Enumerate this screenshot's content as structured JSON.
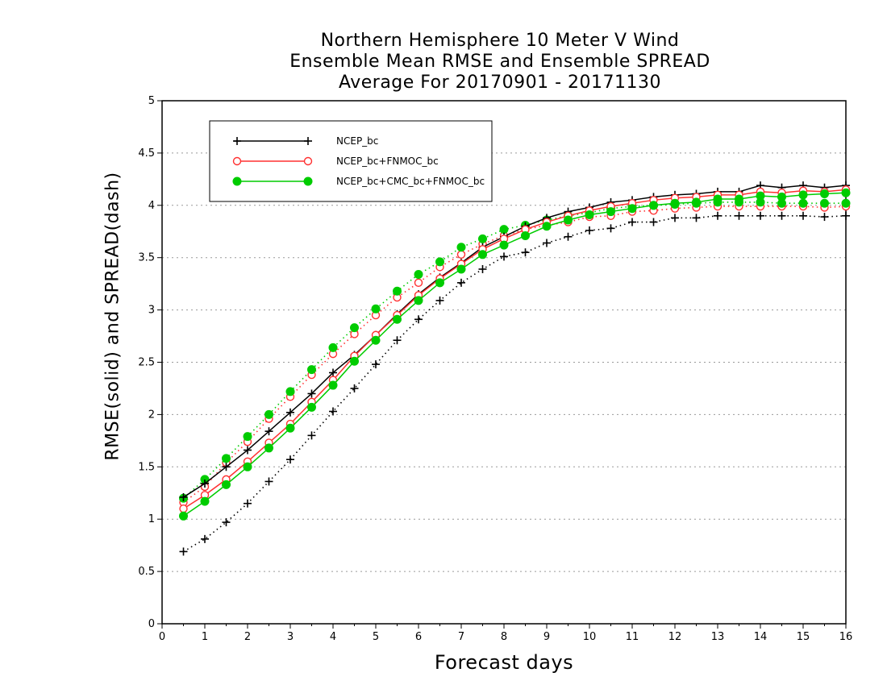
{
  "chart_data": {
    "type": "line",
    "title_lines": [
      "Northern Hemisphere 10 Meter V Wind",
      "Ensemble Mean RMSE and Ensemble SPREAD",
      "Average For 20170901 - 20171130"
    ],
    "xlabel": "Forecast days",
    "ylabel": "RMSE(solid) and SPREAD(dash)",
    "xlim": [
      0,
      16
    ],
    "ylim": [
      0,
      5
    ],
    "xticks": [
      0,
      1,
      2,
      3,
      4,
      5,
      6,
      7,
      8,
      9,
      10,
      11,
      12,
      13,
      14,
      15,
      16
    ],
    "yticks": [
      0,
      0.5,
      1,
      1.5,
      2,
      2.5,
      3,
      3.5,
      4,
      4.5,
      5
    ],
    "ytick_labels": [
      "0",
      "0.5",
      "1",
      "1.5",
      "2",
      "2.5",
      "3",
      "3.5",
      "4",
      "4.5",
      "5"
    ],
    "grid": "dotted horizontal",
    "legend_position": "top-left",
    "x": [
      0.5,
      1,
      1.5,
      2,
      2.5,
      3,
      3.5,
      4,
      4.5,
      5,
      5.5,
      6,
      6.5,
      7,
      7.5,
      8,
      8.5,
      9,
      9.5,
      10,
      10.5,
      11,
      11.5,
      12,
      12.5,
      13,
      13.5,
      14,
      14.5,
      15,
      15.5,
      16
    ],
    "series": [
      {
        "name": "NCEP_bc",
        "color": "#000000",
        "marker": "plus",
        "rmse": [
          1.21,
          1.34,
          1.5,
          1.66,
          1.84,
          2.02,
          2.2,
          2.4,
          2.57,
          2.76,
          2.96,
          3.15,
          3.31,
          3.45,
          3.6,
          3.7,
          3.8,
          3.88,
          3.94,
          3.98,
          4.03,
          4.05,
          4.08,
          4.1,
          4.11,
          4.13,
          4.13,
          4.19,
          4.17,
          4.19,
          4.17,
          4.19
        ],
        "spread": [
          0.69,
          0.81,
          0.97,
          1.15,
          1.36,
          1.57,
          1.8,
          2.03,
          2.25,
          2.48,
          2.71,
          2.91,
          3.09,
          3.26,
          3.39,
          3.51,
          3.55,
          3.64,
          3.7,
          3.76,
          3.78,
          3.84,
          3.84,
          3.88,
          3.88,
          3.9,
          3.9,
          3.9,
          3.9,
          3.9,
          3.89,
          3.9
        ]
      },
      {
        "name": "NCEP_bc+FNMOC_bc",
        "color": "#ff3030",
        "marker": "open-circle",
        "rmse": [
          1.1,
          1.23,
          1.38,
          1.55,
          1.73,
          1.91,
          2.12,
          2.33,
          2.56,
          2.76,
          2.95,
          3.14,
          3.3,
          3.44,
          3.58,
          3.68,
          3.77,
          3.84,
          3.9,
          3.95,
          3.99,
          4.02,
          4.05,
          4.07,
          4.08,
          4.1,
          4.1,
          4.13,
          4.12,
          4.14,
          4.13,
          4.15
        ],
        "spread": [
          1.16,
          1.31,
          1.54,
          1.74,
          1.96,
          2.17,
          2.38,
          2.58,
          2.77,
          2.95,
          3.12,
          3.26,
          3.41,
          3.53,
          3.63,
          3.71,
          3.77,
          3.81,
          3.84,
          3.89,
          3.9,
          3.94,
          3.95,
          3.97,
          3.98,
          3.99,
          3.99,
          3.99,
          3.99,
          3.99,
          3.98,
          3.99
        ]
      },
      {
        "name": "NCEP_bc+CMC_bc+FNMOC_bc",
        "color": "#00cc00",
        "marker": "filled-circle",
        "rmse": [
          1.03,
          1.17,
          1.33,
          1.5,
          1.68,
          1.87,
          2.07,
          2.28,
          2.51,
          2.71,
          2.91,
          3.09,
          3.26,
          3.39,
          3.53,
          3.62,
          3.71,
          3.8,
          3.86,
          3.91,
          3.94,
          3.97,
          4.0,
          4.02,
          4.03,
          4.06,
          4.06,
          4.09,
          4.08,
          4.1,
          4.11,
          4.12
        ],
        "spread": [
          1.2,
          1.38,
          1.58,
          1.79,
          2.0,
          2.22,
          2.43,
          2.64,
          2.83,
          3.01,
          3.18,
          3.34,
          3.46,
          3.6,
          3.68,
          3.77,
          3.81,
          3.86,
          3.9,
          3.93,
          3.97,
          3.99,
          4.0,
          4.01,
          4.02,
          4.03,
          4.03,
          4.03,
          4.02,
          4.02,
          4.02,
          4.02
        ]
      }
    ]
  }
}
